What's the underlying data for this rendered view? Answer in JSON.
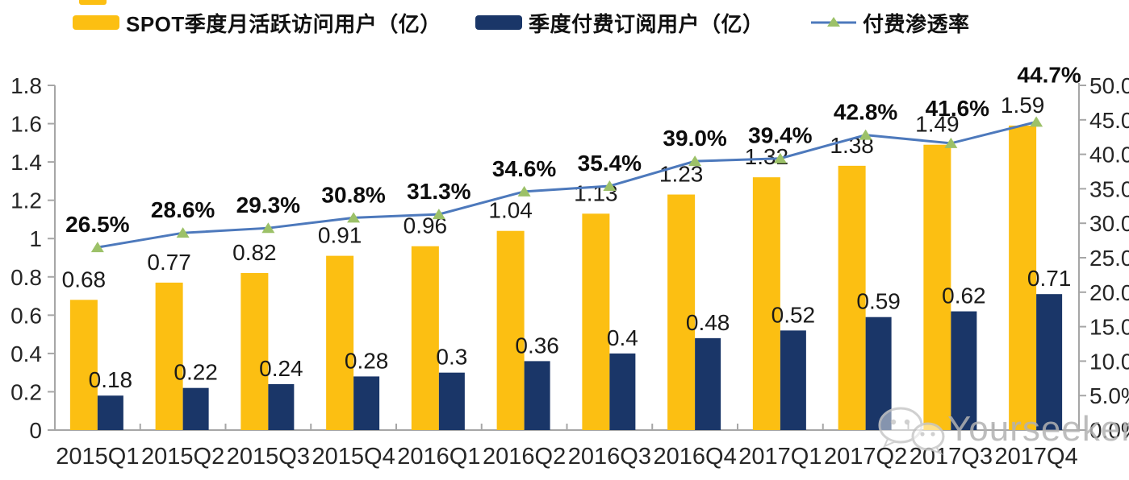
{
  "legend": [
    {
      "label": "SPOT季度月活跃访问用户（亿）",
      "swatch_color": "#FCBF12",
      "type": "bar"
    },
    {
      "label": "季度付费订阅用户（亿）",
      "swatch_color": "#1A3668",
      "type": "bar"
    },
    {
      "label": "付费渗透率",
      "line_color": "#4D79BC",
      "marker_color": "#9CC168",
      "type": "line"
    }
  ],
  "watermark": {
    "text": "Yourseeker",
    "icon": "wechat-icon"
  },
  "colors": {
    "mau_bar": "#FCBF12",
    "subs_bar": "#1A3668",
    "penetration_line": "#4D79BC",
    "penetration_marker": "#9CC168",
    "axis": "#A6A6A6"
  },
  "chart_data": {
    "type": "bar",
    "title": "",
    "categories": [
      "2015Q1",
      "2015Q2",
      "2015Q3",
      "2015Q4",
      "2016Q1",
      "2016Q2",
      "2016Q3",
      "2016Q4",
      "2017Q1",
      "2017Q2",
      "2017Q3",
      "2017Q4"
    ],
    "series": [
      {
        "name": "SPOT季度月活跃访问用户（亿）",
        "type": "bar",
        "axis": "left",
        "color": "#FCBF12",
        "values": [
          0.68,
          0.77,
          0.82,
          0.91,
          0.96,
          1.04,
          1.13,
          1.23,
          1.32,
          1.38,
          1.49,
          1.59
        ],
        "labels": [
          "0.68",
          "0.77",
          "0.82",
          "0.91",
          "0.96",
          "1.04",
          "1.13",
          "1.23",
          "1.32",
          "1.38",
          "1.49",
          "1.59"
        ]
      },
      {
        "name": "季度付费订阅用户（亿）",
        "type": "bar",
        "axis": "left",
        "color": "#1A3668",
        "values": [
          0.18,
          0.22,
          0.24,
          0.28,
          0.3,
          0.36,
          0.4,
          0.48,
          0.52,
          0.59,
          0.62,
          0.71
        ],
        "labels": [
          "0.18",
          "0.22",
          "0.24",
          "0.28",
          "0.3",
          "0.36",
          "0.4",
          "0.48",
          "0.52",
          "0.59",
          "0.62",
          "0.71"
        ]
      },
      {
        "name": "付费渗透率",
        "type": "line",
        "axis": "right",
        "color": "#4D79BC",
        "marker": "triangle",
        "marker_color": "#9CC168",
        "values": [
          26.5,
          28.6,
          29.3,
          30.8,
          31.3,
          34.6,
          35.4,
          39.0,
          39.4,
          42.8,
          41.6,
          44.7
        ],
        "labels": [
          "26.5%",
          "28.6%",
          "29.3%",
          "30.8%",
          "31.3%",
          "34.6%",
          "35.4%",
          "39.0%",
          "39.4%",
          "42.8%",
          "41.6%",
          "44.7%"
        ]
      }
    ],
    "left_axis": {
      "min": 0,
      "max": 1.8,
      "tick_labels": [
        "1.8",
        "1.6",
        "1.4",
        "1.2",
        "1",
        "0.8",
        "0.6",
        "0.4",
        "0.2",
        "0"
      ]
    },
    "right_axis": {
      "min": 0,
      "max": 50,
      "tick_labels": [
        "50.0%",
        "45.0%",
        "40.0%",
        "35.0%",
        "30.0%",
        "25.0%",
        "20.0%",
        "15.0%",
        "10.0%",
        "5.0%",
        "0.0%"
      ]
    },
    "grid": false,
    "legend_position": "top"
  }
}
